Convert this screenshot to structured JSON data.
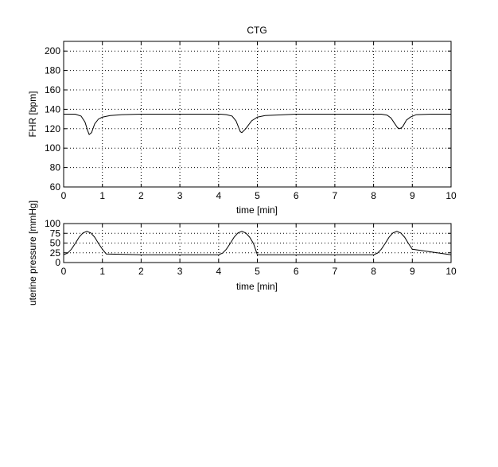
{
  "chart_data": [
    {
      "type": "line",
      "title": "CTG",
      "xlabel": "time [min]",
      "ylabel": "FHR [bpm]",
      "xlim": [
        0,
        10
      ],
      "ylim": [
        60,
        210
      ],
      "xticks": [
        "0",
        "1",
        "2",
        "3",
        "4",
        "5",
        "6",
        "7",
        "8",
        "9",
        "10"
      ],
      "yticks": [
        "60",
        "80",
        "100",
        "120",
        "140",
        "160",
        "180",
        "200"
      ],
      "grid": true,
      "series": [
        {
          "x": [
            0,
            0.3,
            0.45,
            0.55,
            0.62,
            0.66,
            0.72,
            0.8,
            0.9,
            1.0,
            1.2,
            1.5,
            2.0,
            3.0,
            3.9,
            4.05,
            4.2,
            4.35,
            4.45,
            4.52,
            4.56,
            4.6,
            4.7,
            4.85,
            5.0,
            5.2,
            6.0,
            7.0,
            8.0,
            8.2,
            8.35,
            8.45,
            8.55,
            8.62,
            8.68,
            8.75,
            8.85,
            8.95,
            9.1,
            9.5,
            10.0
          ],
          "values": [
            135,
            135,
            133,
            127,
            118,
            114,
            116,
            125,
            130,
            132,
            133.5,
            134.5,
            135,
            135,
            135,
            135,
            134.5,
            133,
            128,
            121,
            117,
            116,
            120,
            128,
            132,
            133.5,
            135,
            135,
            135,
            135,
            134,
            131,
            125,
            121,
            120,
            122,
            129,
            132,
            134.5,
            135,
            135
          ]
        }
      ]
    },
    {
      "type": "line",
      "title": "",
      "xlabel": "time [min]",
      "ylabel": "uterine pressure [mmHg]",
      "xlim": [
        0,
        10
      ],
      "ylim": [
        0,
        100
      ],
      "xticks": [
        "0",
        "1",
        "2",
        "3",
        "4",
        "5",
        "6",
        "7",
        "8",
        "9",
        "10"
      ],
      "yticks": [
        "0",
        "25",
        "50",
        "75",
        "100"
      ],
      "grid": true,
      "series": [
        {
          "x": [
            0,
            0.1,
            0.2,
            0.3,
            0.4,
            0.5,
            0.6,
            0.7,
            0.8,
            0.9,
            1.0,
            1.1,
            2.0,
            3.0,
            4.0,
            4.1,
            4.2,
            4.3,
            4.4,
            4.5,
            4.6,
            4.7,
            4.8,
            4.9,
            5.0,
            6.0,
            7.0,
            8.0,
            8.1,
            8.2,
            8.3,
            8.4,
            8.5,
            8.6,
            8.7,
            8.8,
            8.9,
            9.0,
            10.0
          ],
          "values": [
            20,
            24,
            34,
            49,
            65,
            76,
            80,
            76,
            65,
            49,
            34,
            22,
            20,
            20,
            20,
            24,
            34,
            49,
            65,
            76,
            80,
            76,
            65,
            49,
            20,
            20,
            20,
            20,
            24,
            34,
            49,
            65,
            76,
            80,
            76,
            65,
            49,
            34,
            20
          ]
        }
      ]
    }
  ]
}
